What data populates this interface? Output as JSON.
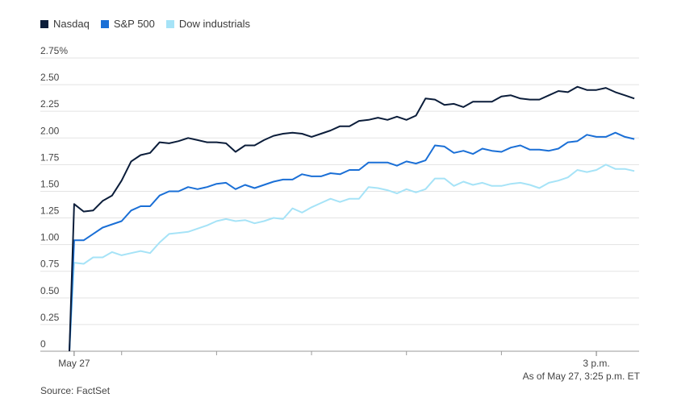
{
  "chart_data": {
    "type": "line",
    "ylim": [
      0,
      2.75
    ],
    "yticks": [
      "0",
      "0.25",
      "0.50",
      "0.75",
      "1.00",
      "1.25",
      "1.50",
      "1.75",
      "2.00",
      "2.25",
      "2.50",
      "2.75%"
    ],
    "ytick_values": [
      0,
      0.25,
      0.5,
      0.75,
      1.0,
      1.25,
      1.5,
      1.75,
      2.0,
      2.25,
      2.5,
      2.75
    ],
    "x_tick_labels": [
      {
        "label": "May 27",
        "x": 0
      },
      {
        "label": "3 p.m.",
        "x": 55
      }
    ],
    "x_minor_ticks": [
      5,
      15,
      25,
      35,
      45
    ],
    "xlim": [
      -0.5,
      59.5
    ],
    "grid": true,
    "legend_placement": "top-left",
    "series": [
      {
        "name": "Nasdaq",
        "color": "#0b1d3a",
        "x": [
          -0.5,
          0,
          1,
          2,
          3,
          4,
          5,
          6,
          7,
          8,
          9,
          10,
          11,
          12,
          13,
          14,
          15,
          16,
          17,
          18,
          19,
          20,
          21,
          22,
          23,
          24,
          25,
          26,
          27,
          28,
          29,
          30,
          31,
          32,
          33,
          34,
          35,
          36,
          37,
          38,
          39,
          40,
          41,
          42,
          43,
          44,
          45,
          46,
          47,
          48,
          49,
          50,
          51,
          52,
          53,
          54,
          55,
          56,
          57,
          58,
          59
        ],
        "values": [
          0,
          1.38,
          1.31,
          1.32,
          1.41,
          1.46,
          1.6,
          1.78,
          1.84,
          1.86,
          1.96,
          1.95,
          1.97,
          2.0,
          1.98,
          1.96,
          1.96,
          1.95,
          1.87,
          1.93,
          1.93,
          1.98,
          2.02,
          2.04,
          2.05,
          2.04,
          2.01,
          2.04,
          2.07,
          2.11,
          2.11,
          2.16,
          2.17,
          2.19,
          2.17,
          2.2,
          2.17,
          2.21,
          2.37,
          2.36,
          2.31,
          2.32,
          2.29,
          2.34,
          2.34,
          2.34,
          2.39,
          2.4,
          2.37,
          2.36,
          2.36,
          2.4,
          2.44,
          2.43,
          2.48,
          2.45,
          2.45,
          2.47,
          2.43,
          2.4,
          2.37
        ]
      },
      {
        "name": "S&P 500",
        "color": "#1a6fd6",
        "x": [
          -0.5,
          0,
          1,
          2,
          3,
          4,
          5,
          6,
          7,
          8,
          9,
          10,
          11,
          12,
          13,
          14,
          15,
          16,
          17,
          18,
          19,
          20,
          21,
          22,
          23,
          24,
          25,
          26,
          27,
          28,
          29,
          30,
          31,
          32,
          33,
          34,
          35,
          36,
          37,
          38,
          39,
          40,
          41,
          42,
          43,
          44,
          45,
          46,
          47,
          48,
          49,
          50,
          51,
          52,
          53,
          54,
          55,
          56,
          57,
          58,
          59
        ],
        "values": [
          0,
          1.04,
          1.04,
          1.1,
          1.16,
          1.19,
          1.22,
          1.32,
          1.36,
          1.36,
          1.46,
          1.5,
          1.5,
          1.54,
          1.52,
          1.54,
          1.57,
          1.58,
          1.52,
          1.56,
          1.53,
          1.56,
          1.59,
          1.61,
          1.61,
          1.66,
          1.64,
          1.64,
          1.67,
          1.66,
          1.7,
          1.7,
          1.77,
          1.77,
          1.77,
          1.74,
          1.78,
          1.76,
          1.79,
          1.93,
          1.92,
          1.86,
          1.88,
          1.85,
          1.9,
          1.88,
          1.87,
          1.91,
          1.93,
          1.89,
          1.89,
          1.88,
          1.9,
          1.96,
          1.97,
          2.03,
          2.01,
          2.01,
          2.05,
          2.01,
          1.99
        ]
      },
      {
        "name": "Dow industrials",
        "color": "#a6e3f7",
        "x": [
          -0.5,
          0,
          1,
          2,
          3,
          4,
          5,
          6,
          7,
          8,
          9,
          10,
          11,
          12,
          13,
          14,
          15,
          16,
          17,
          18,
          19,
          20,
          21,
          22,
          23,
          24,
          25,
          26,
          27,
          28,
          29,
          30,
          31,
          32,
          33,
          34,
          35,
          36,
          37,
          38,
          39,
          40,
          41,
          42,
          43,
          44,
          45,
          46,
          47,
          48,
          49,
          50,
          51,
          52,
          53,
          54,
          55,
          56,
          57,
          58,
          59
        ],
        "values": [
          0,
          0.83,
          0.82,
          0.88,
          0.88,
          0.93,
          0.9,
          0.92,
          0.94,
          0.92,
          1.02,
          1.1,
          1.11,
          1.12,
          1.15,
          1.18,
          1.22,
          1.24,
          1.22,
          1.23,
          1.2,
          1.22,
          1.25,
          1.24,
          1.34,
          1.3,
          1.35,
          1.39,
          1.43,
          1.4,
          1.43,
          1.43,
          1.54,
          1.53,
          1.51,
          1.48,
          1.52,
          1.49,
          1.52,
          1.62,
          1.62,
          1.55,
          1.59,
          1.56,
          1.58,
          1.55,
          1.55,
          1.57,
          1.58,
          1.56,
          1.53,
          1.58,
          1.6,
          1.63,
          1.7,
          1.68,
          1.7,
          1.75,
          1.71,
          1.71,
          1.69
        ]
      }
    ]
  },
  "footnote": "As of May 27, 3:25 p.m. ET",
  "source": "Source: FactSet"
}
